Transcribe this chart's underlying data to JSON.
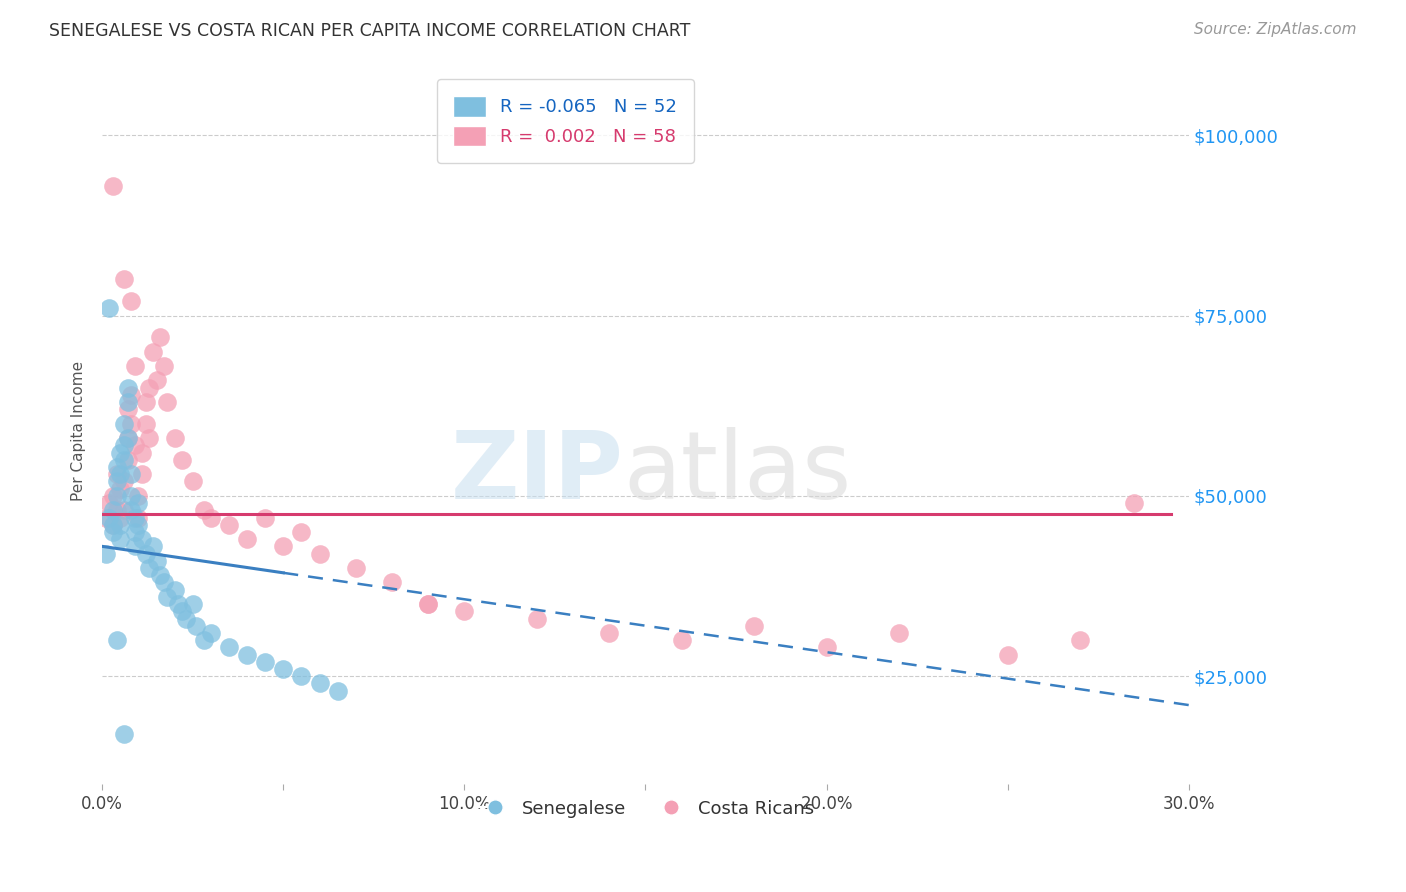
{
  "title": "SENEGALESE VS COSTA RICAN PER CAPITA INCOME CORRELATION CHART",
  "source": "Source: ZipAtlas.com",
  "ylabel": "Per Capita Income",
  "xlim": [
    0.0,
    0.3
  ],
  "ylim": [
    10000,
    108000
  ],
  "xticks": [
    0.0,
    0.05,
    0.1,
    0.15,
    0.2,
    0.25,
    0.3
  ],
  "xtick_labels": [
    "0.0%",
    "",
    "10.0%",
    "",
    "20.0%",
    "",
    "30.0%"
  ],
  "ytick_vals": [
    25000,
    50000,
    75000,
    100000
  ],
  "ytick_labels": [
    "$25,000",
    "$50,000",
    "$75,000",
    "$100,000"
  ],
  "blue_color": "#7fbfdf",
  "pink_color": "#f4a0b5",
  "blue_line_color": "#3a7fc1",
  "pink_line_color": "#d63b6e",
  "legend_R_blue": "-0.065",
  "legend_N_blue": "52",
  "legend_R_pink": "0.002",
  "legend_N_pink": "58",
  "watermark_zip": "ZIP",
  "watermark_atlas": "atlas",
  "blue_trend_x_start": 0.0,
  "blue_trend_x_solid_end": 0.05,
  "blue_trend_x_end": 0.3,
  "blue_trend_y_at_0": 43000,
  "blue_trend_y_at_30": 21000,
  "pink_trend_y": 47500,
  "pink_trend_x_start": 0.0,
  "pink_trend_x_end": 0.295,
  "grid_color": "#cccccc",
  "background_color": "#ffffff",
  "senegalese_x": [
    0.001,
    0.002,
    0.003,
    0.003,
    0.003,
    0.004,
    0.004,
    0.004,
    0.005,
    0.005,
    0.005,
    0.005,
    0.006,
    0.006,
    0.006,
    0.007,
    0.007,
    0.007,
    0.008,
    0.008,
    0.008,
    0.009,
    0.009,
    0.009,
    0.01,
    0.01,
    0.011,
    0.012,
    0.013,
    0.014,
    0.015,
    0.016,
    0.017,
    0.018,
    0.02,
    0.021,
    0.022,
    0.023,
    0.025,
    0.026,
    0.028,
    0.03,
    0.035,
    0.04,
    0.045,
    0.05,
    0.055,
    0.06,
    0.065,
    0.002,
    0.004,
    0.006
  ],
  "senegalese_y": [
    42000,
    47000,
    45000,
    48000,
    46000,
    50000,
    52000,
    54000,
    56000,
    53000,
    44000,
    46000,
    55000,
    57000,
    60000,
    58000,
    63000,
    65000,
    48000,
    50000,
    53000,
    47000,
    45000,
    43000,
    46000,
    49000,
    44000,
    42000,
    40000,
    43000,
    41000,
    39000,
    38000,
    36000,
    37000,
    35000,
    34000,
    33000,
    35000,
    32000,
    30000,
    31000,
    29000,
    28000,
    27000,
    26000,
    25000,
    24000,
    23000,
    76000,
    30000,
    17000
  ],
  "costarican_x": [
    0.001,
    0.002,
    0.003,
    0.003,
    0.004,
    0.004,
    0.005,
    0.005,
    0.006,
    0.006,
    0.007,
    0.007,
    0.007,
    0.008,
    0.008,
    0.009,
    0.009,
    0.01,
    0.01,
    0.011,
    0.011,
    0.012,
    0.012,
    0.013,
    0.013,
    0.014,
    0.015,
    0.016,
    0.017,
    0.018,
    0.02,
    0.022,
    0.025,
    0.028,
    0.03,
    0.035,
    0.04,
    0.045,
    0.05,
    0.055,
    0.06,
    0.07,
    0.08,
    0.09,
    0.1,
    0.12,
    0.14,
    0.16,
    0.18,
    0.2,
    0.22,
    0.25,
    0.27,
    0.285,
    0.003,
    0.006,
    0.008,
    0.09
  ],
  "costarican_y": [
    47000,
    49000,
    46000,
    50000,
    48000,
    53000,
    47000,
    51000,
    48000,
    52000,
    55000,
    58000,
    62000,
    60000,
    64000,
    57000,
    68000,
    47000,
    50000,
    53000,
    56000,
    60000,
    63000,
    58000,
    65000,
    70000,
    66000,
    72000,
    68000,
    63000,
    58000,
    55000,
    52000,
    48000,
    47000,
    46000,
    44000,
    47000,
    43000,
    45000,
    42000,
    40000,
    38000,
    35000,
    34000,
    33000,
    31000,
    30000,
    32000,
    29000,
    31000,
    28000,
    30000,
    49000,
    93000,
    80000,
    77000,
    35000
  ]
}
